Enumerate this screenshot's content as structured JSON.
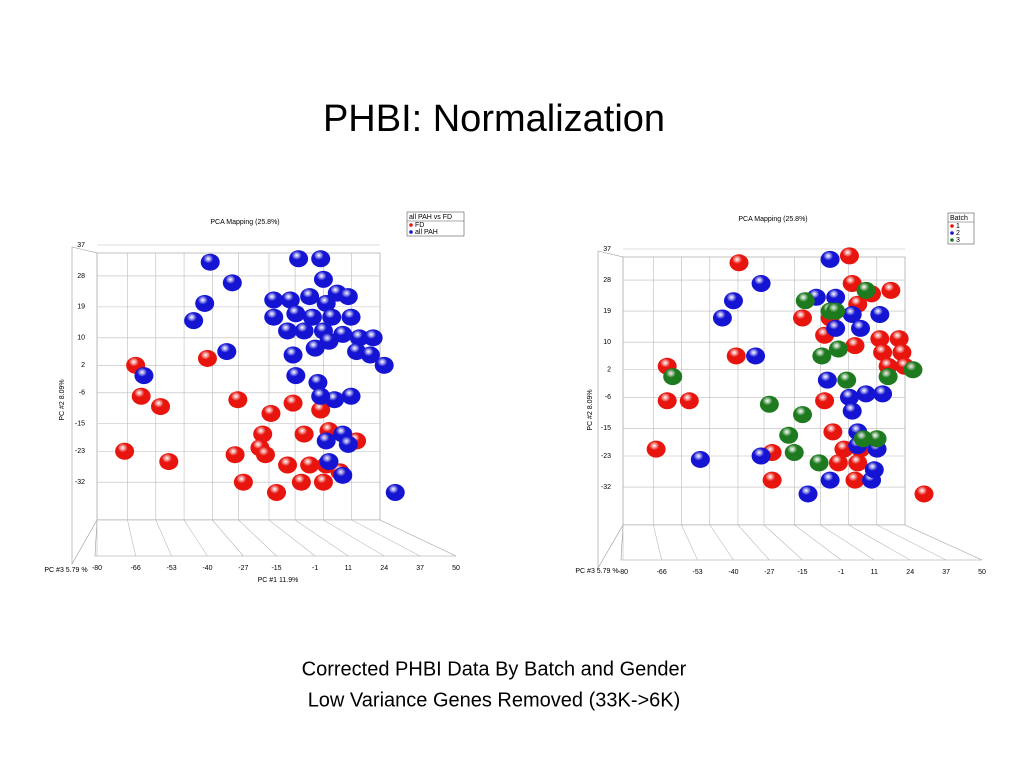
{
  "title": "PHBI: Normalization",
  "caption": [
    "Corrected PHBI Data By Batch and Gender",
    "Low Variance Genes Removed (33K->6K)"
  ],
  "chart_data": [
    {
      "type": "scatter",
      "title": "PCA Mapping (25.8%)",
      "xlabel": "PC #1 11.9%",
      "ylabel": "PC #2 8.09%",
      "zlabel": "PC #3 5.79 %",
      "legend_title": "all PAH vs FD",
      "xlim": [
        -80,
        50
      ],
      "xticks": [
        -80,
        -66,
        -53,
        -40,
        -27,
        -15,
        -1,
        11,
        24,
        37,
        50
      ],
      "ylim": [
        -43,
        37
      ],
      "yticks": [
        37,
        28,
        19,
        10,
        2,
        -6,
        -15,
        -23,
        -32
      ],
      "grid": true,
      "series": [
        {
          "name": "FD",
          "color": "#e8150e",
          "x": [
            -66,
            -64,
            -57,
            -70,
            -54,
            -40,
            -29,
            -17,
            -20,
            -21,
            -19,
            -30,
            -27,
            -15,
            -11,
            -6,
            -3,
            3,
            -9,
            1,
            4,
            -5,
            2,
            8,
            14
          ],
          "values": [
            2,
            -7,
            -10,
            -23,
            -26,
            4,
            -8,
            -12,
            -18,
            -22,
            -24,
            -24,
            -32,
            -35,
            -27,
            -32,
            -27,
            -27,
            -9,
            -11,
            -17,
            -18,
            -32,
            -29,
            -20
          ]
        },
        {
          "name": "all PAH",
          "color": "#1414d2",
          "x": [
            -39,
            -31,
            -41,
            -45,
            -63,
            -33,
            -7,
            1,
            2,
            7,
            11,
            -16,
            -10,
            -3,
            3,
            -16,
            -8,
            -2,
            5,
            12,
            -11,
            -5,
            2,
            9,
            15,
            20,
            -9,
            -1,
            4,
            14,
            19,
            24,
            -8,
            0,
            6,
            12,
            1,
            3,
            9,
            11,
            4,
            9,
            28
          ],
          "values": [
            32,
            26,
            20,
            15,
            -1,
            6,
            33,
            33,
            27,
            23,
            22,
            21,
            21,
            22,
            20,
            16,
            17,
            16,
            16,
            16,
            12,
            12,
            12,
            11,
            10,
            10,
            5,
            7,
            9,
            6,
            5,
            2,
            -1,
            -3,
            -8,
            -7,
            -7,
            -20,
            -18,
            -21,
            -26,
            -30,
            -35
          ]
        }
      ]
    },
    {
      "type": "scatter",
      "title": "PCA Mapping (25.8%)",
      "ylabel": "PC #2 8.09%",
      "zlabel": "PC #3 5.79 %",
      "legend_title": "Batch",
      "xlim": [
        -80,
        50
      ],
      "xticks": [
        -80,
        -66,
        -53,
        -40,
        -27,
        -15,
        -1,
        11,
        24,
        37,
        50
      ],
      "ylim": [
        -43,
        37
      ],
      "yticks": [
        37,
        28,
        19,
        10,
        2,
        -6,
        -15,
        -23,
        -32
      ],
      "grid": true,
      "series": [
        {
          "name": "1",
          "color": "#e8150e",
          "x": [
            -38,
            2,
            3,
            5,
            10,
            17,
            -15,
            -5,
            -39,
            -64,
            -64,
            -56,
            -68,
            -7,
            4,
            13,
            20,
            14,
            21,
            16,
            22,
            -7,
            -4,
            -26,
            0,
            6,
            5,
            -2,
            4,
            -26,
            29
          ],
          "values": [
            33,
            35,
            27,
            21,
            24,
            25,
            17,
            17,
            6,
            3,
            -7,
            -7,
            -21,
            12,
            9,
            11,
            11,
            7,
            7,
            3,
            3,
            -7,
            -16,
            -22,
            -21,
            -21,
            -25,
            -25,
            -30,
            -30,
            -34
          ]
        },
        {
          "name": "2",
          "color": "#1414d2",
          "x": [
            -5,
            -30,
            -40,
            -44,
            -32,
            -10,
            -3,
            3,
            13,
            -3,
            6,
            -6,
            2,
            8,
            14,
            3,
            5,
            5,
            12,
            -30,
            -52,
            -5,
            10,
            -13,
            11
          ],
          "values": [
            34,
            27,
            22,
            17,
            6,
            23,
            23,
            18,
            18,
            14,
            14,
            -1,
            -6,
            -5,
            -5,
            -10,
            -16,
            -20,
            -21,
            -23,
            -24,
            -30,
            -30,
            -34,
            -27
          ]
        },
        {
          "name": "3",
          "color": "#1e7a1e",
          "x": [
            -14,
            -5,
            -3,
            8,
            -2,
            -8,
            -62,
            16,
            25,
            1,
            -27,
            -15,
            -20,
            12,
            -9,
            7,
            -18
          ],
          "values": [
            22,
            19,
            19,
            25,
            8,
            6,
            0,
            0,
            2,
            -1,
            -8,
            -11,
            -17,
            -18,
            -25,
            -18,
            -22
          ]
        }
      ]
    }
  ]
}
